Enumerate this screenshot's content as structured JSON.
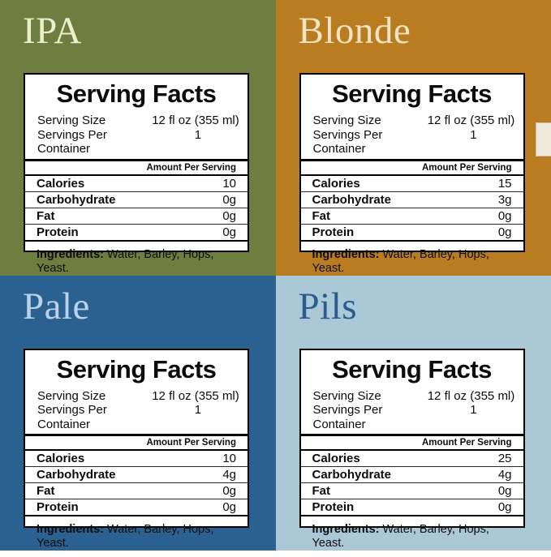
{
  "panels": [
    {
      "title": "IPA",
      "bg_color": "#6f7e40",
      "title_color": "#edefcb",
      "label": {
        "heading": "Serving Facts",
        "serving_rows": [
          {
            "label": "Serving Size",
            "value": "12 fl oz (355 ml)"
          },
          {
            "label": "Servings Per Container",
            "value": "1"
          }
        ],
        "amount_header": "Amount Per Serving",
        "nutrients": [
          {
            "name": "Calories",
            "value": "10"
          },
          {
            "name": "Carbohydrate",
            "value": "0g"
          },
          {
            "name": "Fat",
            "value": "0g"
          },
          {
            "name": "Protein",
            "value": "0g"
          }
        ],
        "ingredients_label": "Ingredients:",
        "ingredients_text": "Water, Barley, Hops, Yeast."
      }
    },
    {
      "title": "Blonde",
      "bg_color": "#b97c21",
      "title_color": "#f4e4c3",
      "label": {
        "heading": "Serving Facts",
        "serving_rows": [
          {
            "label": "Serving Size",
            "value": "12 fl oz (355 ml)"
          },
          {
            "label": "Servings Per Container",
            "value": "1"
          }
        ],
        "amount_header": "Amount Per Serving",
        "nutrients": [
          {
            "name": "Calories",
            "value": "15"
          },
          {
            "name": "Carbohydrate",
            "value": "3g"
          },
          {
            "name": "Fat",
            "value": "0g"
          },
          {
            "name": "Protein",
            "value": "0g"
          }
        ],
        "ingredients_label": "Ingredients:",
        "ingredients_text": "Water, Barley, Hops, Yeast."
      }
    },
    {
      "title": "Pale",
      "bg_color": "#2a6191",
      "title_color": "#b9d4ea",
      "label": {
        "heading": "Serving Facts",
        "serving_rows": [
          {
            "label": "Serving Size",
            "value": "12 fl oz (355 ml)"
          },
          {
            "label": "Servings Per Container",
            "value": "1"
          }
        ],
        "amount_header": "Amount Per Serving",
        "nutrients": [
          {
            "name": "Calories",
            "value": "10"
          },
          {
            "name": "Carbohydrate",
            "value": "4g"
          },
          {
            "name": "Fat",
            "value": "0g"
          },
          {
            "name": "Protein",
            "value": "0g"
          }
        ],
        "ingredients_label": "Ingredients:",
        "ingredients_text": "Water, Barley, Hops, Yeast."
      }
    },
    {
      "title": "Pils",
      "bg_color": "#abc8d6",
      "title_color": "#2b5c8e",
      "label": {
        "heading": "Serving Facts",
        "serving_rows": [
          {
            "label": "Serving Size",
            "value": "12 fl oz (355 ml)"
          },
          {
            "label": "Servings Per Container",
            "value": "1"
          }
        ],
        "amount_header": "Amount Per Serving",
        "nutrients": [
          {
            "name": "Calories",
            "value": "25"
          },
          {
            "name": "Carbohydrate",
            "value": "4g"
          },
          {
            "name": "Fat",
            "value": "0g"
          },
          {
            "name": "Protein",
            "value": "0g"
          }
        ],
        "ingredients_label": "Ingredients:",
        "ingredients_text": "Water, Barley, Hops, Yeast."
      }
    }
  ],
  "decor": {
    "side_tab_color": "#f0e8da"
  }
}
